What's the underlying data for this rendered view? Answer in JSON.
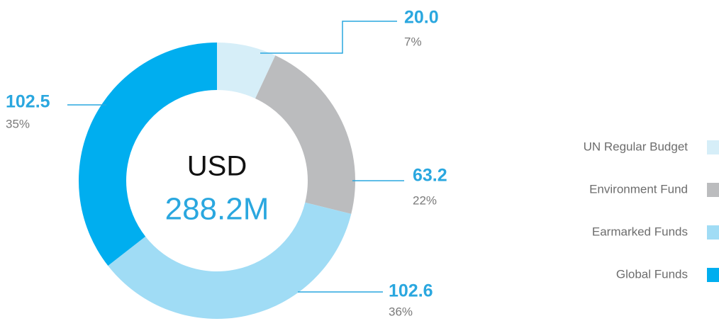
{
  "chart_data": {
    "type": "donut",
    "categories": [
      "UN Regular Budget",
      "Environment Fund",
      "Earmarked Funds",
      "Global Funds"
    ],
    "values": [
      20,
      63.2,
      102.6,
      102.5
    ],
    "value_labels": [
      "20.0",
      "63.2",
      "102.6",
      "102.5"
    ],
    "percent_labels": [
      "7%",
      "22%",
      "36%",
      "35%"
    ],
    "colors": [
      "#d6eef8",
      "#bbbcbe",
      "#a0dcf5",
      "#00aeef"
    ],
    "center_label": "USD",
    "total_label": "288.2M",
    "legend": "right"
  }
}
